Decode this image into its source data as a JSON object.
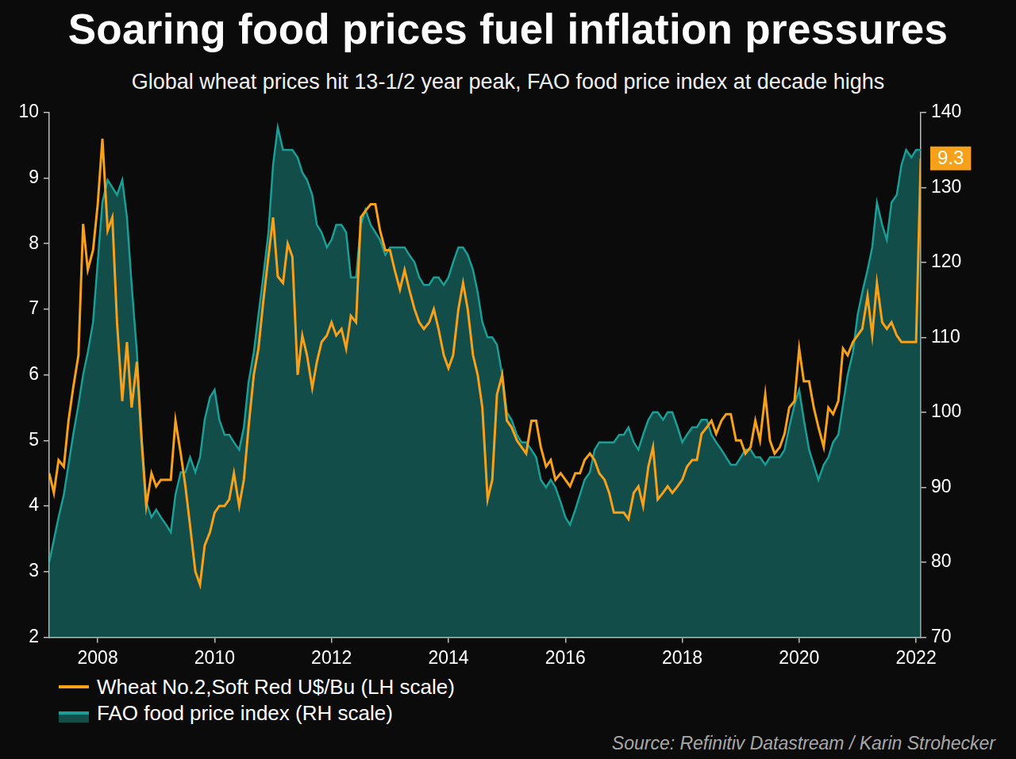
{
  "chart_data": {
    "type": "line",
    "title": "Soaring food prices fuel inflation pressures",
    "subtitle": "Global wheat prices hit 13-1/2 year peak, FAO food price index at decade highs",
    "source": "Source: Refinitiv Datastream / Karin Strohecker",
    "x": [
      2007.17,
      2007.25,
      2007.33,
      2007.42,
      2007.5,
      2007.58,
      2007.67,
      2007.75,
      2007.83,
      2007.92,
      2008,
      2008.08,
      2008.17,
      2008.25,
      2008.33,
      2008.42,
      2008.5,
      2008.58,
      2008.67,
      2008.75,
      2008.83,
      2008.92,
      2009,
      2009.08,
      2009.17,
      2009.25,
      2009.33,
      2009.42,
      2009.5,
      2009.58,
      2009.67,
      2009.75,
      2009.83,
      2009.92,
      2010,
      2010.08,
      2010.17,
      2010.25,
      2010.33,
      2010.42,
      2010.5,
      2010.58,
      2010.67,
      2010.75,
      2010.83,
      2010.92,
      2011,
      2011.08,
      2011.17,
      2011.25,
      2011.33,
      2011.42,
      2011.5,
      2011.58,
      2011.67,
      2011.75,
      2011.83,
      2011.92,
      2012,
      2012.08,
      2012.17,
      2012.25,
      2012.33,
      2012.42,
      2012.5,
      2012.58,
      2012.67,
      2012.75,
      2012.83,
      2012.92,
      2013,
      2013.08,
      2013.17,
      2013.25,
      2013.33,
      2013.42,
      2013.5,
      2013.58,
      2013.67,
      2013.75,
      2013.83,
      2013.92,
      2014,
      2014.08,
      2014.17,
      2014.25,
      2014.33,
      2014.42,
      2014.5,
      2014.58,
      2014.67,
      2014.75,
      2014.83,
      2014.92,
      2015,
      2015.08,
      2015.17,
      2015.25,
      2015.33,
      2015.42,
      2015.5,
      2015.58,
      2015.67,
      2015.75,
      2015.83,
      2015.92,
      2016,
      2016.08,
      2016.17,
      2016.25,
      2016.33,
      2016.42,
      2016.5,
      2016.58,
      2016.67,
      2016.75,
      2016.83,
      2016.92,
      2017,
      2017.08,
      2017.17,
      2017.25,
      2017.33,
      2017.42,
      2017.5,
      2017.58,
      2017.67,
      2017.75,
      2017.83,
      2017.92,
      2018,
      2018.08,
      2018.17,
      2018.25,
      2018.33,
      2018.42,
      2018.5,
      2018.58,
      2018.67,
      2018.75,
      2018.83,
      2018.92,
      2019,
      2019.08,
      2019.17,
      2019.25,
      2019.33,
      2019.42,
      2019.5,
      2019.58,
      2019.67,
      2019.75,
      2019.83,
      2019.92,
      2020,
      2020.08,
      2020.17,
      2020.25,
      2020.33,
      2020.42,
      2020.5,
      2020.58,
      2020.67,
      2020.75,
      2020.83,
      2020.92,
      2021,
      2021.08,
      2021.17,
      2021.25,
      2021.33,
      2021.42,
      2021.5,
      2021.58,
      2021.67,
      2021.75,
      2021.83,
      2021.92,
      2022,
      2022.08
    ],
    "xlim": [
      2007.17,
      2022.08
    ],
    "xticks": [
      2008,
      2010,
      2012,
      2014,
      2016,
      2018,
      2020,
      2022
    ],
    "ylim": [
      2,
      10
    ],
    "yticks": [
      2,
      3,
      4,
      5,
      6,
      7,
      8,
      9,
      10
    ],
    "y2lim": [
      70,
      140
    ],
    "y2ticks": [
      70,
      80,
      90,
      100,
      110,
      120,
      130,
      140
    ],
    "grid": false,
    "legend": "bottom-left",
    "series": [
      {
        "name": "Wheat No.2,Soft Red U$/Bu (LH scale)",
        "color": "#f7a11a",
        "type": "line",
        "values": [
          4.5,
          4.2,
          4.7,
          4.6,
          5.3,
          5.8,
          6.3,
          8.3,
          7.6,
          7.9,
          8.6,
          9.6,
          8.2,
          8.4,
          6.8,
          5.6,
          6.5,
          5.5,
          6.2,
          5.0,
          4.0,
          4.5,
          4.3,
          4.4,
          4.4,
          4.4,
          5.3,
          4.8,
          4.3,
          3.7,
          3.0,
          2.8,
          3.4,
          3.6,
          3.9,
          4.0,
          4.0,
          4.1,
          4.5,
          4.0,
          4.4,
          5.2,
          6.0,
          6.4,
          7.1,
          7.8,
          8.4,
          7.5,
          7.4,
          8.0,
          7.8,
          6.0,
          6.6,
          6.3,
          5.8,
          6.2,
          6.5,
          6.6,
          6.8,
          6.6,
          6.7,
          6.4,
          6.9,
          6.8,
          8.4,
          8.5,
          8.6,
          8.6,
          8.2,
          7.9,
          7.9,
          7.6,
          7.3,
          7.6,
          7.3,
          7.0,
          6.8,
          6.7,
          6.8,
          7.0,
          6.7,
          6.3,
          6.1,
          6.3,
          7.0,
          7.4,
          7.0,
          6.3,
          6.0,
          5.5,
          4.1,
          4.4,
          5.7,
          6.0,
          5.3,
          5.2,
          5.0,
          4.9,
          4.8,
          5.3,
          5.3,
          4.9,
          4.6,
          4.7,
          4.4,
          4.5,
          4.4,
          4.3,
          4.5,
          4.5,
          4.7,
          4.8,
          4.7,
          4.5,
          4.4,
          4.2,
          3.9,
          3.9,
          3.9,
          3.8,
          4.2,
          4.3,
          4.0,
          4.6,
          4.9,
          4.1,
          4.2,
          4.3,
          4.2,
          4.3,
          4.4,
          4.6,
          4.7,
          4.7,
          5.1,
          5.2,
          5.3,
          5.1,
          5.3,
          5.4,
          5.4,
          5.0,
          5.0,
          4.8,
          4.9,
          5.3,
          5.0,
          5.7,
          5.0,
          4.8,
          4.9,
          5.1,
          5.5,
          5.6,
          6.4,
          5.9,
          5.9,
          5.5,
          5.2,
          4.9,
          5.5,
          5.4,
          5.6,
          6.4,
          6.3,
          6.5,
          6.6,
          6.7,
          7.2,
          6.6,
          7.4,
          6.8,
          6.7,
          6.8,
          6.6,
          6.5,
          6.5,
          6.5,
          6.5,
          9.3
        ]
      },
      {
        "name": "FAO food price index (RH scale)",
        "color": "#1b9e96",
        "type": "area",
        "axis": "y2",
        "values": [
          80,
          83,
          86,
          89,
          93,
          97,
          101,
          105,
          108,
          112,
          120,
          128,
          131,
          130,
          129,
          131,
          126,
          117,
          108,
          97,
          88,
          86,
          87,
          86,
          85,
          84,
          89,
          92,
          92,
          94,
          92,
          94,
          99,
          102,
          103,
          99,
          97,
          97,
          96,
          95,
          98,
          104,
          108,
          113,
          118,
          124,
          133,
          138,
          135,
          135,
          135,
          134,
          132,
          131,
          129,
          125,
          124,
          122,
          123,
          125,
          125,
          124,
          118,
          118,
          125,
          127,
          125,
          124,
          123,
          121,
          122,
          122,
          122,
          122,
          121,
          120,
          118,
          117,
          117,
          118,
          118,
          117,
          118,
          120,
          122,
          122,
          121,
          119,
          116,
          112,
          110,
          110,
          109,
          105,
          100,
          99,
          97,
          96,
          96,
          95,
          94,
          91,
          90,
          91,
          90,
          88,
          86,
          85,
          87,
          89,
          91,
          92,
          95,
          96,
          96,
          96,
          96,
          97,
          97,
          98,
          96,
          95,
          97,
          99,
          100,
          100,
          99,
          100,
          100,
          98,
          96,
          97,
          98,
          98,
          99,
          99,
          97,
          96,
          95,
          94,
          93,
          93,
          94,
          95,
          95,
          94,
          94,
          93,
          94,
          94,
          94,
          95,
          98,
          101,
          103,
          99,
          95,
          93,
          91,
          93,
          94,
          96,
          97,
          101,
          105,
          108,
          113,
          116,
          119,
          122,
          128,
          125,
          123,
          128,
          129,
          133,
          135,
          134,
          135,
          135
        ]
      }
    ],
    "annotations": [
      {
        "text": "9.3",
        "x": 2022.08,
        "y": 9.3
      }
    ]
  }
}
